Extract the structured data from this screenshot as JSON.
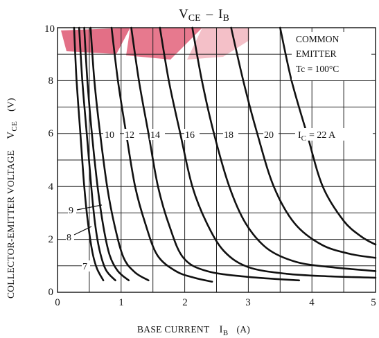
{
  "chart_data": {
    "type": "line",
    "title": "VCE - IB",
    "title_parts": {
      "main1": "V",
      "sub1": "CE",
      "sep": "–",
      "main2": "I",
      "sub2": "B"
    },
    "xlabel": {
      "text": "BASE CURRENT",
      "sym": "I",
      "sub": "B",
      "unit": "(A)"
    },
    "ylabel": {
      "text": "COLLECTOR-EMITTER VOLTAGE",
      "sym": "V",
      "sub": "CE",
      "unit": "(V)"
    },
    "xlim": [
      0,
      5
    ],
    "ylim": [
      0,
      10
    ],
    "x_ticks": [
      "0",
      "1",
      "2",
      "3",
      "4",
      "5"
    ],
    "y_ticks": [
      "0",
      "2",
      "4",
      "6",
      "8",
      "10"
    ],
    "grid": true,
    "annotation": {
      "line1": "COMMON",
      "line2": "EMITTER",
      "line3": "Tc = 100°C"
    },
    "ic_label": {
      "sym": "I",
      "sub": "C",
      "rest": "= 22 A"
    },
    "series": [
      {
        "label": "7",
        "points": [
          [
            0.26,
            10
          ],
          [
            0.3,
            8
          ],
          [
            0.36,
            6
          ],
          [
            0.42,
            4
          ],
          [
            0.48,
            2.6
          ],
          [
            0.55,
            1.5
          ],
          [
            0.62,
            0.9
          ],
          [
            0.72,
            0.45
          ]
        ]
      },
      {
        "label": "8",
        "points": [
          [
            0.34,
            10
          ],
          [
            0.39,
            8
          ],
          [
            0.46,
            6
          ],
          [
            0.53,
            4
          ],
          [
            0.59,
            2.6
          ],
          [
            0.66,
            1.6
          ],
          [
            0.76,
            0.85
          ],
          [
            0.91,
            0.45
          ]
        ]
      },
      {
        "label": "9",
        "points": [
          [
            0.42,
            10
          ],
          [
            0.47,
            8
          ],
          [
            0.54,
            6
          ],
          [
            0.63,
            4
          ],
          [
            0.72,
            2.5
          ],
          [
            0.82,
            1.4
          ],
          [
            0.95,
            0.8
          ],
          [
            1.12,
            0.45
          ]
        ]
      },
      {
        "label": "10",
        "points": [
          [
            0.52,
            10
          ],
          [
            0.58,
            8
          ],
          [
            0.67,
            6
          ],
          [
            0.78,
            4
          ],
          [
            0.9,
            2.5
          ],
          [
            1.04,
            1.3
          ],
          [
            1.22,
            0.75
          ],
          [
            1.43,
            0.45
          ]
        ]
      },
      {
        "label": "12",
        "points": [
          [
            0.85,
            10
          ],
          [
            0.95,
            8
          ],
          [
            1.08,
            6
          ],
          [
            1.22,
            4
          ],
          [
            1.38,
            2.6
          ],
          [
            1.57,
            1.4
          ],
          [
            1.86,
            0.8
          ],
          [
            2.15,
            0.55
          ],
          [
            2.43,
            0.4
          ]
        ]
      },
      {
        "label": "14",
        "points": [
          [
            1.16,
            10
          ],
          [
            1.28,
            8
          ],
          [
            1.43,
            6
          ],
          [
            1.58,
            4
          ],
          [
            1.76,
            2.5
          ],
          [
            1.98,
            1.3
          ],
          [
            2.35,
            0.8
          ],
          [
            3.0,
            0.58
          ],
          [
            3.8,
            0.45
          ]
        ]
      },
      {
        "label": "16",
        "points": [
          [
            1.61,
            10
          ],
          [
            1.75,
            8
          ],
          [
            1.93,
            6
          ],
          [
            2.12,
            4
          ],
          [
            2.35,
            2.6
          ],
          [
            2.62,
            1.55
          ],
          [
            3.0,
            0.95
          ],
          [
            3.6,
            0.7
          ],
          [
            4.3,
            0.6
          ],
          [
            5.0,
            0.55
          ]
        ]
      },
      {
        "label": "18",
        "points": [
          [
            2.12,
            10
          ],
          [
            2.27,
            8
          ],
          [
            2.46,
            6
          ],
          [
            2.7,
            4
          ],
          [
            2.96,
            2.6
          ],
          [
            3.3,
            1.65
          ],
          [
            3.75,
            1.15
          ],
          [
            4.3,
            0.95
          ],
          [
            5.0,
            0.8
          ]
        ]
      },
      {
        "label": "20",
        "points": [
          [
            2.73,
            10
          ],
          [
            2.92,
            8
          ],
          [
            3.14,
            6
          ],
          [
            3.4,
            4
          ],
          [
            3.73,
            2.6
          ],
          [
            4.15,
            1.8
          ],
          [
            4.6,
            1.45
          ],
          [
            5.0,
            1.3
          ]
        ]
      },
      {
        "label": "22",
        "points": [
          [
            3.5,
            10
          ],
          [
            3.68,
            8
          ],
          [
            3.92,
            6
          ],
          [
            4.17,
            4
          ],
          [
            4.5,
            2.7
          ],
          [
            4.78,
            2.1
          ],
          [
            5.0,
            1.8
          ]
        ]
      }
    ],
    "watermark_color": "#d9435a"
  }
}
